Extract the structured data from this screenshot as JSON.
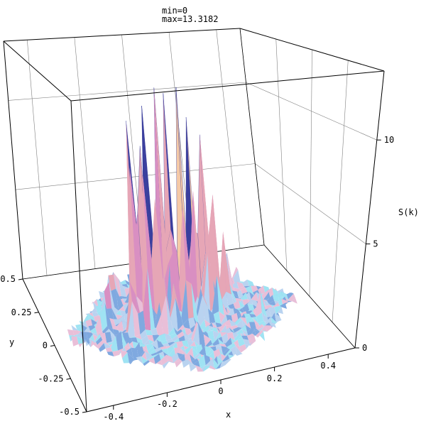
{
  "header": {
    "min_label": "min=0",
    "max_label": "max=13.3182"
  },
  "chart_data": {
    "type": "surface3d",
    "title": "",
    "xlabel": "x",
    "ylabel": "y",
    "zlabel": "S(k)",
    "x_range": [
      -0.5,
      0.5
    ],
    "y_range": [
      -0.5,
      0.5
    ],
    "z_range": [
      0,
      13.3182
    ],
    "x_ticks": [
      {
        "value": -0.4,
        "label": "-0.4"
      },
      {
        "value": -0.2,
        "label": "-0.2"
      },
      {
        "value": 0,
        "label": "0"
      },
      {
        "value": 0.2,
        "label": "0.2"
      },
      {
        "value": 0.4,
        "label": "0.4"
      }
    ],
    "y_ticks": [
      {
        "value": 0.5,
        "label": "0.5"
      },
      {
        "value": 0.25,
        "label": "0.25"
      },
      {
        "value": 0,
        "label": "0"
      },
      {
        "value": -0.25,
        "label": "-0.25"
      },
      {
        "value": -0.5,
        "label": "-0.5"
      }
    ],
    "z_ticks": [
      {
        "value": 0,
        "label": "0"
      },
      {
        "value": 5,
        "label": "5"
      },
      {
        "value": 10,
        "label": "10"
      }
    ],
    "grid": true,
    "baseline": {
      "value": 0,
      "noise_amplitude": 0.45
    },
    "peaks": [
      {
        "x": -0.14,
        "y": 0.12,
        "z": 12.6
      },
      {
        "x": -0.11,
        "y": 0.1,
        "z": 10.8
      },
      {
        "x": -0.08,
        "y": 0.13,
        "z": 12.3
      },
      {
        "x": -0.04,
        "y": 0.11,
        "z": 13.3
      },
      {
        "x": 0.0,
        "y": 0.12,
        "z": 12.4
      },
      {
        "x": 0.04,
        "y": 0.1,
        "z": 12.6
      },
      {
        "x": 0.08,
        "y": 0.12,
        "z": 11.4
      },
      {
        "x": 0.12,
        "y": 0.1,
        "z": 10.6
      },
      {
        "x": 0.16,
        "y": 0.11,
        "z": 7.9
      },
      {
        "x": -0.16,
        "y": 0.04,
        "z": 9.6
      },
      {
        "x": -0.12,
        "y": 0.02,
        "z": 8.3
      },
      {
        "x": -0.08,
        "y": 0.03,
        "z": 9.4
      },
      {
        "x": -0.03,
        "y": 0.01,
        "z": 7.8
      },
      {
        "x": 0.02,
        "y": 0.03,
        "z": 8.1
      },
      {
        "x": 0.06,
        "y": 0.02,
        "z": 6.4
      },
      {
        "x": 0.11,
        "y": 0.01,
        "z": 5.8
      },
      {
        "x": -0.2,
        "y": -0.05,
        "z": 4.6
      },
      {
        "x": -0.15,
        "y": -0.06,
        "z": 3.4
      },
      {
        "x": -0.09,
        "y": -0.07,
        "z": 4.3
      },
      {
        "x": -0.04,
        "y": -0.05,
        "z": 3.1
      },
      {
        "x": 0.01,
        "y": -0.06,
        "z": 3.6
      },
      {
        "x": 0.07,
        "y": -0.05,
        "z": 2.9
      },
      {
        "x": 0.13,
        "y": -0.04,
        "z": 2.4
      },
      {
        "x": 0.19,
        "y": 0.06,
        "z": 3.7
      },
      {
        "x": 0.22,
        "y": 0.15,
        "z": 3.2
      },
      {
        "x": -0.22,
        "y": 0.18,
        "z": 3.3
      },
      {
        "x": -0.26,
        "y": 0.1,
        "z": 2.6
      },
      {
        "x": -0.28,
        "y": -0.12,
        "z": 1.4
      },
      {
        "x": 0.27,
        "y": -0.1,
        "z": 1.2
      },
      {
        "x": 0.3,
        "y": 0.22,
        "z": 1.5
      },
      {
        "x": -0.18,
        "y": 0.28,
        "z": 1.8
      },
      {
        "x": 0.1,
        "y": 0.3,
        "z": 1.9
      },
      {
        "x": -0.3,
        "y": 0.02,
        "z": 1.6
      },
      {
        "x": 0.0,
        "y": -0.2,
        "z": 1.3
      }
    ],
    "colors": {
      "peak_light": "#f5c9a6",
      "peak_mid": "#e6a6b6",
      "peak_pink": "#d98fc2",
      "peak_dark": "#3a3f9e",
      "base_light": "#b9d3f0",
      "base_blue": "#7fa9e0",
      "base_pink": "#e9bfd8",
      "base_cyan": "#9fe3f3",
      "grid": "#808080",
      "frame": "#000000"
    }
  }
}
